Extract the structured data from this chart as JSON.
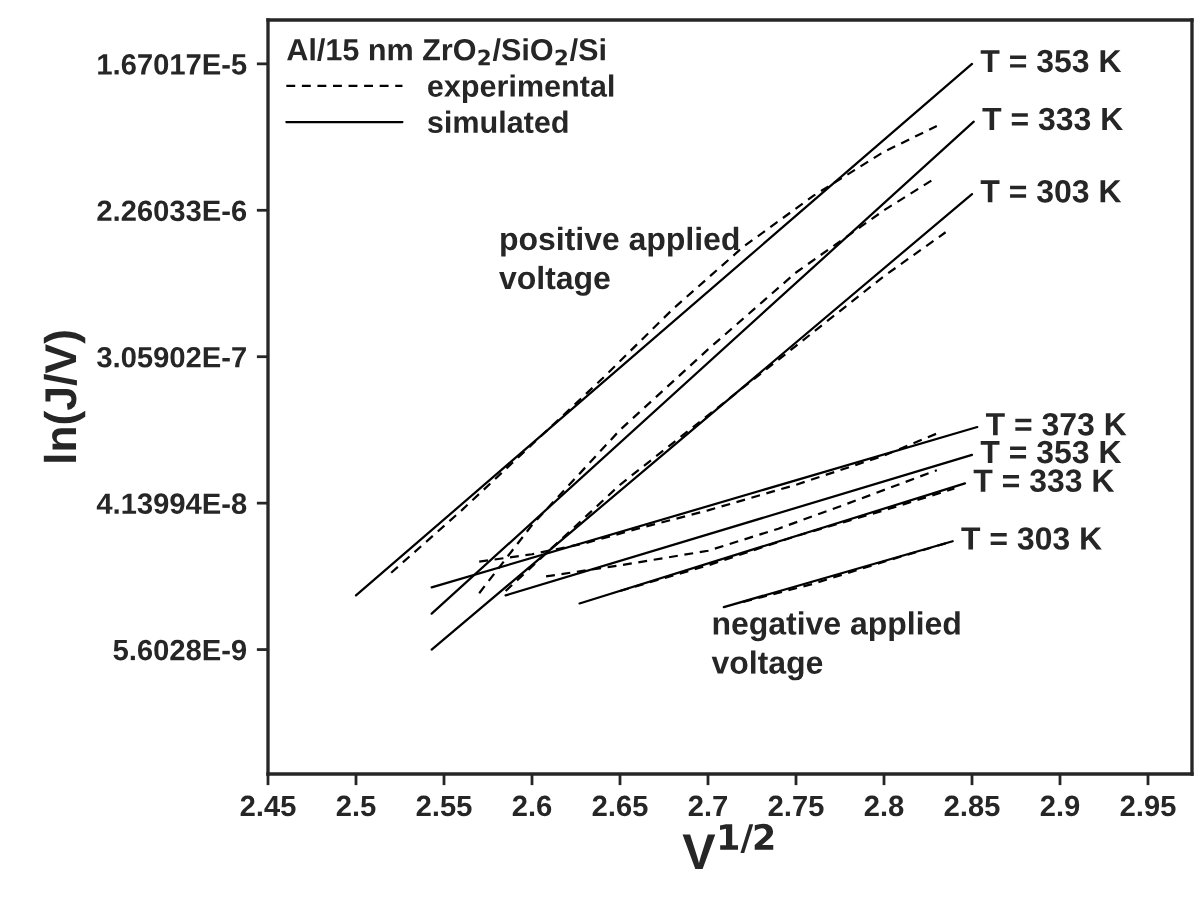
{
  "chart_data": {
    "type": "line",
    "xlabel": "V$^{1/2}$",
    "ylabel": "ln(J/V)",
    "legend_title": "Al/15 nm ZrO$_{2}$/SiO$_{2}$/Si",
    "xlim": [
      2.45,
      2.975
    ],
    "xticks": [
      2.45,
      2.5,
      2.55,
      2.6,
      2.65,
      2.7,
      2.75,
      2.8,
      2.85,
      2.9,
      2.95
    ],
    "log": "y",
    "ylim": [
      1.024e-09,
      3.04e-05
    ],
    "yticks": [
      {
        "value": 1.67017e-05,
        "label": "1.67017E-5"
      },
      {
        "value": 2.26033e-06,
        "label": "2.26033E-6"
      },
      {
        "value": 3.05902e-07,
        "label": "3.05902E-7"
      },
      {
        "value": 4.13994e-08,
        "label": "4.13994E-8"
      },
      {
        "value": 5.6028e-09,
        "label": "5.6028E-9"
      }
    ],
    "grid": false,
    "legend": "top left",
    "marker": "none",
    "series": [
      {
        "name": "experimental",
        "color": "#000000",
        "line_style": "dashed",
        "x": [
          2.52,
          2.56,
          2.6,
          2.64,
          2.68,
          2.72,
          2.76,
          2.8,
          2.83
        ],
        "values": [
          1.6e-08,
          3.75e-08,
          9.22e-08,
          2.27e-07,
          5.86e-07,
          1.371e-06,
          2.76e-06,
          5.03e-06,
          7.14e-06
        ]
      },
      {
        "name": "simulated",
        "color": "#000000",
        "line_style": "solid",
        "x": [
          2.5,
          2.85
        ],
        "values": [
          1.174e-08,
          1.67e-05
        ]
      },
      {
        "color": "#000000",
        "line_style": "dashed",
        "x": [
          2.57,
          2.6,
          2.65,
          2.7,
          2.75,
          2.8,
          2.83
        ],
        "values": [
          1.21e-08,
          3.07e-08,
          1.125e-07,
          3.38e-07,
          9.66e-07,
          2.26e-06,
          3.55e-06
        ]
      },
      {
        "color": "#000000",
        "line_style": "solid",
        "x": [
          2.543,
          2.851
        ],
        "values": [
          9.15e-09,
          7.58e-06
        ]
      },
      {
        "color": "#000000",
        "line_style": "dashed",
        "x": [
          2.585,
          2.65,
          2.7,
          2.75,
          2.8,
          2.835
        ],
        "values": [
          1.247e-08,
          5.32e-08,
          1.374e-07,
          3.55e-07,
          9.19e-07,
          1.674e-06
        ]
      },
      {
        "color": "#000000",
        "line_style": "solid",
        "x": [
          2.543,
          2.85
        ],
        "values": [
          5.6e-09,
          2.82e-06
        ]
      },
      {
        "color": "#000000",
        "line_style": "dashed",
        "x": [
          2.57,
          2.6,
          2.63,
          2.66,
          2.7,
          2.75,
          2.8,
          2.83
        ],
        "values": [
          1.861e-08,
          2.06e-08,
          2.39e-08,
          2.92e-08,
          3.75e-08,
          5.32e-08,
          7.93e-08,
          1.071e-07
        ]
      },
      {
        "color": "#000000",
        "line_style": "solid",
        "x": [
          2.543,
          2.853
        ],
        "values": [
          1.311e-08,
          1.171e-07
        ]
      },
      {
        "color": "#000000",
        "line_style": "dashed",
        "x": [
          2.608,
          2.65,
          2.7,
          2.74,
          2.78,
          2.83
        ],
        "values": [
          1.523e-08,
          1.77e-08,
          2.16e-08,
          2.92e-08,
          4.14e-08,
          6.49e-08
        ]
      },
      {
        "color": "#000000",
        "line_style": "solid",
        "x": [
          2.585,
          2.85
        ],
        "values": [
          1.174e-08,
          8.01e-08
        ]
      },
      {
        "color": "#000000",
        "line_style": "dashed",
        "x": [
          2.65,
          2.7,
          2.75,
          2.8,
          2.84
        ],
        "values": [
          1.247e-08,
          1.77e-08,
          2.64e-08,
          3.75e-08,
          5.06e-08
        ]
      },
      {
        "color": "#000000",
        "line_style": "solid",
        "x": [
          2.627,
          2.846
        ],
        "values": [
          1.052e-08,
          5.42e-08
        ]
      },
      {
        "color": "#000000",
        "line_style": "dashed",
        "x": [
          2.72,
          2.76,
          2.8,
          2.835
        ],
        "values": [
          1.074e-08,
          1.378e-08,
          1.861e-08,
          2.39e-08
        ]
      },
      {
        "color": "#000000",
        "line_style": "solid",
        "x": [
          2.709,
          2.839
        ],
        "values": [
          1.001e-08,
          2.46e-08
        ]
      }
    ],
    "annotations": [
      {
        "text": "T = 353 K",
        "x": 2.85,
        "y": 1.67e-05
      },
      {
        "text": "T = 333 K",
        "x": 2.851,
        "y": 7.58e-06
      },
      {
        "text": "T = 303 K",
        "x": 2.85,
        "y": 2.82e-06
      },
      {
        "text": "T = 373 K",
        "x": 2.853,
        "y": 1.171e-07
      },
      {
        "text": "T = 353 K",
        "x": 2.85,
        "y": 8.01e-08
      },
      {
        "text": "T = 333 K",
        "x": 2.846,
        "y": 5.42e-08
      },
      {
        "text": "T = 303 K",
        "x": 2.839,
        "y": 2.46e-08
      },
      "positive applied\nvoltage",
      "negative applied\nvoltage"
    ]
  }
}
